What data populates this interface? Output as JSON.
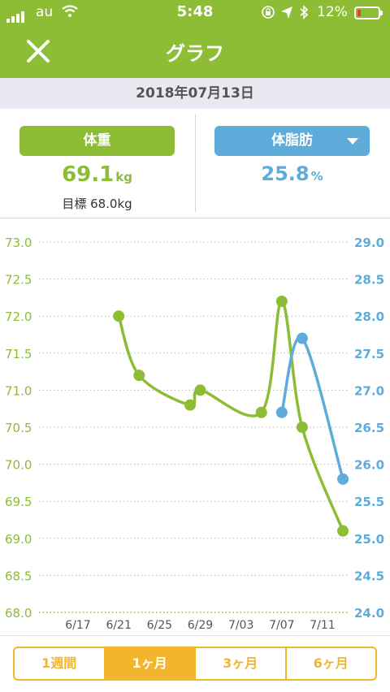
{
  "status_bar": {
    "carrier": "au",
    "time": "5:48",
    "battery": "12%"
  },
  "header": {
    "title": "グラフ",
    "close_icon": "close-icon"
  },
  "date": "2018年07月13日",
  "weight": {
    "label": "体重",
    "value": "69.1",
    "unit": "kg",
    "goal": "目標 68.0kg",
    "color": "#8cbd34"
  },
  "body_fat": {
    "label": "体脂肪",
    "value": "25.8",
    "unit": "%",
    "color": "#5fabd9"
  },
  "chart_data": {
    "type": "line",
    "categories": [
      "6/17",
      "6/21",
      "6/25",
      "6/29",
      "7/03",
      "7/07",
      "7/11"
    ],
    "left_axis": {
      "ticks": [
        "73.0",
        "72.5",
        "72.0",
        "71.5",
        "71.0",
        "70.5",
        "70.0",
        "69.5",
        "69.0",
        "68.5",
        "68.0"
      ],
      "ylim": [
        68.0,
        73.0
      ]
    },
    "right_axis": {
      "ticks": [
        "29.0",
        "28.5",
        "28.0",
        "27.5",
        "27.0",
        "26.5",
        "26.0",
        "25.5",
        "25.0",
        "24.5",
        "24.0"
      ],
      "ylim": [
        24.0,
        29.0
      ]
    },
    "goal_line": 68.0,
    "series": [
      {
        "axis": "left",
        "color": "#8cbd34",
        "points": [
          {
            "x": "2018-06-21",
            "y": 72.0
          },
          {
            "x": "2018-06-23",
            "y": 71.2
          },
          {
            "x": "2018-06-28",
            "y": 70.8
          },
          {
            "x": "2018-06-29",
            "y": 71.0
          },
          {
            "x": "2018-07-05",
            "y": 70.7
          },
          {
            "x": "2018-07-07",
            "y": 72.2
          },
          {
            "x": "2018-07-09",
            "y": 70.5
          },
          {
            "x": "2018-07-13",
            "y": 69.1
          }
        ]
      },
      {
        "axis": "right",
        "color": "#5fabd9",
        "points": [
          {
            "x": "2018-07-07",
            "y": 26.7
          },
          {
            "x": "2018-07-09",
            "y": 27.7
          },
          {
            "x": "2018-07-13",
            "y": 25.8
          }
        ]
      }
    ]
  },
  "range_tabs": [
    {
      "label": "1週間",
      "active": false
    },
    {
      "label": "1ヶ月",
      "active": true
    },
    {
      "label": "3ヶ月",
      "active": false
    },
    {
      "label": "6ヶ月",
      "active": false
    }
  ]
}
